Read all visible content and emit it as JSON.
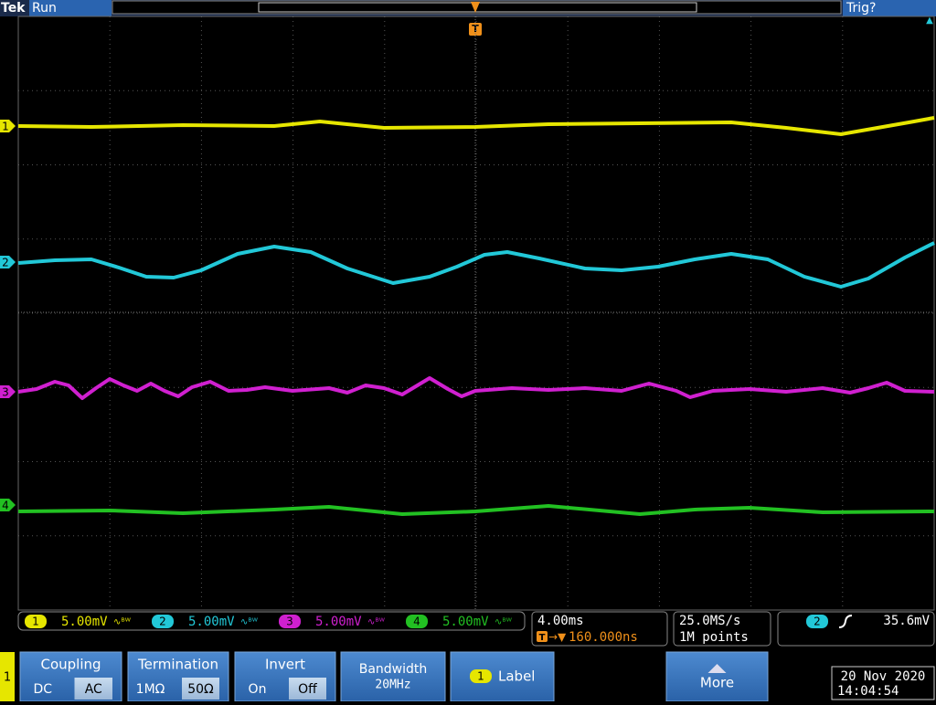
{
  "status_bar": {
    "brand": "Tek",
    "state": "Run",
    "trigger_status": "Trig?",
    "trigger_marker": "T"
  },
  "channel_markers": [
    "1",
    "2",
    "3",
    "4"
  ],
  "channel_readouts": [
    {
      "channel": "1",
      "scale": "5.00mV"
    },
    {
      "channel": "2",
      "scale": "5.00mV"
    },
    {
      "channel": "3",
      "scale": "5.00mV"
    },
    {
      "channel": "4",
      "scale": "5.00mV"
    }
  ],
  "horizontal": {
    "scale": "4.00ms",
    "trigger_icon": "T",
    "delay": "160.000ns"
  },
  "acquisition": {
    "sample_rate": "25.0MS/s",
    "record_length": "1M points"
  },
  "trigger": {
    "source": "2",
    "level": "35.6mV"
  },
  "menu": {
    "channel": "1",
    "buttons": [
      {
        "label": "Coupling",
        "options": [
          "DC",
          "AC"
        ]
      },
      {
        "label": "Termination",
        "options": [
          "1MΩ",
          "50Ω"
        ]
      },
      {
        "label": "Invert",
        "options": [
          "On",
          "Off"
        ]
      },
      {
        "label": "Bandwidth",
        "value": "20MHz"
      },
      {
        "channel": "1",
        "label": "Label"
      },
      {
        "label": "More"
      }
    ]
  },
  "datetime": {
    "date": "20 Nov 2020",
    "time": "14:04:54"
  }
}
